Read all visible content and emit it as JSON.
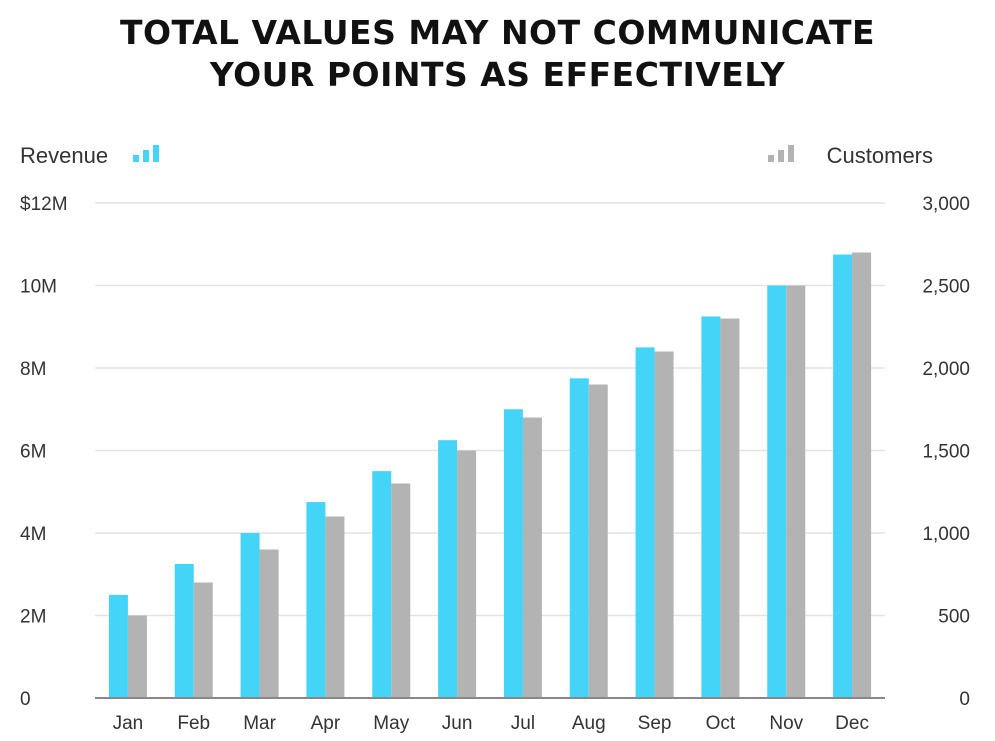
{
  "title_line1": "TOTAL VALUES MAY NOT COMMUNICATE",
  "title_line2": "YOUR POINTS AS EFFECTIVELY",
  "colors": {
    "revenue": "#44d4f8",
    "customers": "#b3b3b3",
    "grid": "#e3e3e3",
    "axis": "#888888"
  },
  "chart_data": {
    "type": "bar",
    "categories": [
      "Jan",
      "Feb",
      "Mar",
      "Apr",
      "May",
      "Jun",
      "Jul",
      "Aug",
      "Sep",
      "Oct",
      "Nov",
      "Dec"
    ],
    "series": [
      {
        "name": "Revenue",
        "axis": "left",
        "unit": "$M",
        "values": [
          2.5,
          3.25,
          4.0,
          4.75,
          5.5,
          6.25,
          7.0,
          7.75,
          8.5,
          9.25,
          10.0,
          10.75
        ]
      },
      {
        "name": "Customers",
        "axis": "right",
        "values": [
          500,
          700,
          900,
          1100,
          1300,
          1500,
          1700,
          1900,
          2100,
          2300,
          2500,
          2700
        ]
      }
    ],
    "left_axis": {
      "ylim": [
        0,
        12
      ],
      "ticks": [
        0,
        2,
        4,
        6,
        8,
        10,
        12
      ],
      "tick_labels": [
        "0",
        "2M",
        "4M",
        "6M",
        "8M",
        "10M",
        "$12M"
      ]
    },
    "right_axis": {
      "ylim": [
        0,
        3000
      ],
      "ticks": [
        0,
        500,
        1000,
        1500,
        2000,
        2500,
        3000
      ],
      "tick_labels": [
        "0",
        "500",
        "1,000",
        "1,500",
        "2,000",
        "2,500",
        "3,000"
      ]
    },
    "grid": true,
    "legend": {
      "revenue_label": "Revenue",
      "customers_label": "Customers",
      "revenue_position": "top-left",
      "customers_position": "top-right"
    }
  }
}
